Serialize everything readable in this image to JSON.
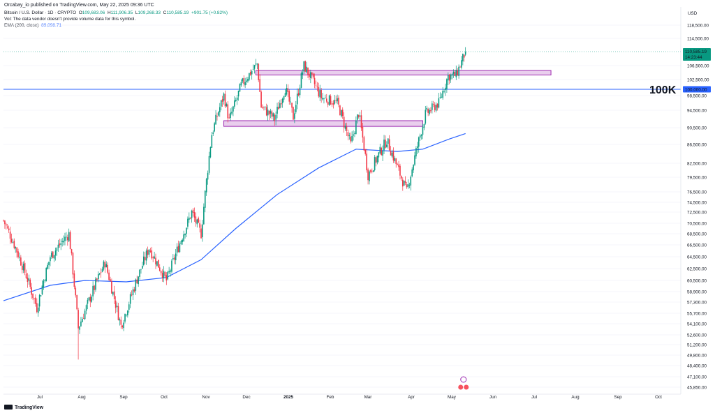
{
  "publish_line": "Orcabay_io published on TradingView.com, May 22, 2025 09:36 UTC",
  "symbol": {
    "name": "Bitcoin / U.S. Dollar · 1D · CRYPTO",
    "o_label": "O",
    "o": "109,683.06",
    "h_label": "H",
    "h": "111,906.35",
    "l_label": "L",
    "l": "109,268.33",
    "c_label": "C",
    "c": "110,585.19",
    "change": "+901.75 (+0.82%)"
  },
  "vol_note": "Vol: The data vendor doesn't provide volume data for this symbol.",
  "ema": {
    "label": "EMA (200, close)",
    "value": "89,098.71"
  },
  "footer": "TradingView",
  "colors": {
    "up": "#089981",
    "down": "#f23645",
    "ema": "#2962ff",
    "box_fill": "#e1bee7",
    "box_stroke": "#9c27b0",
    "level": "#2962ff"
  },
  "chart_data": {
    "type": "candlestick",
    "currency": "USD",
    "y_ticks": [
      118500,
      114500,
      110585.19,
      106500,
      102500,
      100000,
      98500,
      94500,
      90500,
      86500,
      82500,
      79500,
      76500,
      74500,
      72500,
      70500,
      68500,
      66500,
      64500,
      62500,
      60500,
      58900,
      57300,
      55700,
      54100,
      52600,
      51200,
      49800,
      48400,
      47100,
      45850
    ],
    "y_tick_labels": [
      "118,500.00",
      "114,500.00",
      "110,585.19",
      "106,500.00",
      "102,500.00",
      "100,000.00",
      "98,500.00",
      "94,500.00",
      "90,500.00",
      "86,500.00",
      "82,500.00",
      "79,500.00",
      "76,500.00",
      "74,500.00",
      "72,500.00",
      "70,500.00",
      "68,500.00",
      "66,500.00",
      "64,500.00",
      "62,500.00",
      "60,500.00",
      "58,900.00",
      "57,300.00",
      "55,700.00",
      "54,100.00",
      "52,600.00",
      "51,200.00",
      "49,800.00",
      "48,400.00",
      "47,100.00",
      "45,850.00"
    ],
    "x_ticks": [
      "Jul",
      "Aug",
      "Sep",
      "Oct",
      "Nov",
      "Dec",
      "2025",
      "Feb",
      "Mar",
      "Apr",
      "May",
      "Jun",
      "Jul",
      "Aug",
      "Sep",
      "Oct"
    ],
    "last_price_label": "110,585.19",
    "countdown": "14:23:44",
    "level_label": "100K",
    "level_value": 100000,
    "level_axis_label": "100,000.00",
    "zones": [
      {
        "from": "2024-11-22",
        "to": "2025-04-20",
        "low": 90800,
        "high": 92100
      },
      {
        "from": "2024-12-16",
        "to": "2025-07-25",
        "low": 103800,
        "high": 105100
      }
    ],
    "price_path": [
      [
        "2024-06-10",
        71000
      ],
      [
        "2024-06-20",
        65500
      ],
      [
        "2024-07-05",
        56500
      ],
      [
        "2024-07-15",
        64500
      ],
      [
        "2024-07-29",
        68500
      ],
      [
        "2024-08-05",
        53500
      ],
      [
        "2024-08-25",
        63500
      ],
      [
        "2024-09-06",
        53800
      ],
      [
        "2024-09-27",
        66000
      ],
      [
        "2024-10-10",
        60500
      ],
      [
        "2024-10-29",
        72500
      ],
      [
        "2024-11-05",
        68500
      ],
      [
        "2024-11-13",
        89000
      ],
      [
        "2024-11-22",
        98500
      ],
      [
        "2024-11-26",
        92000
      ],
      [
        "2024-12-05",
        101000
      ],
      [
        "2024-12-17",
        107000
      ],
      [
        "2024-12-20",
        95500
      ],
      [
        "2024-12-30",
        92500
      ],
      [
        "2025-01-07",
        100500
      ],
      [
        "2025-01-13",
        93000
      ],
      [
        "2025-01-21",
        106500
      ],
      [
        "2025-02-03",
        98000
      ],
      [
        "2025-02-15",
        96500
      ],
      [
        "2025-02-25",
        86500
      ],
      [
        "2025-03-03",
        94000
      ],
      [
        "2025-03-10",
        80000
      ],
      [
        "2025-03-24",
        87500
      ],
      [
        "2025-04-08",
        76500
      ],
      [
        "2025-04-22",
        93500
      ],
      [
        "2025-05-02",
        96500
      ],
      [
        "2025-05-09",
        103500
      ],
      [
        "2025-05-15",
        103800
      ],
      [
        "2025-05-22",
        110585
      ]
    ],
    "ema_path": [
      [
        "2024-06-10",
        57500
      ],
      [
        "2024-07-15",
        59800
      ],
      [
        "2024-08-10",
        60500
      ],
      [
        "2024-09-10",
        60300
      ],
      [
        "2024-10-10",
        61000
      ],
      [
        "2024-11-05",
        64000
      ],
      [
        "2024-12-01",
        69500
      ],
      [
        "2025-01-01",
        76000
      ],
      [
        "2025-02-01",
        81500
      ],
      [
        "2025-03-01",
        85500
      ],
      [
        "2025-04-01",
        85000
      ],
      [
        "2025-04-20",
        85500
      ],
      [
        "2025-05-10",
        87800
      ],
      [
        "2025-05-22",
        89099
      ]
    ]
  }
}
